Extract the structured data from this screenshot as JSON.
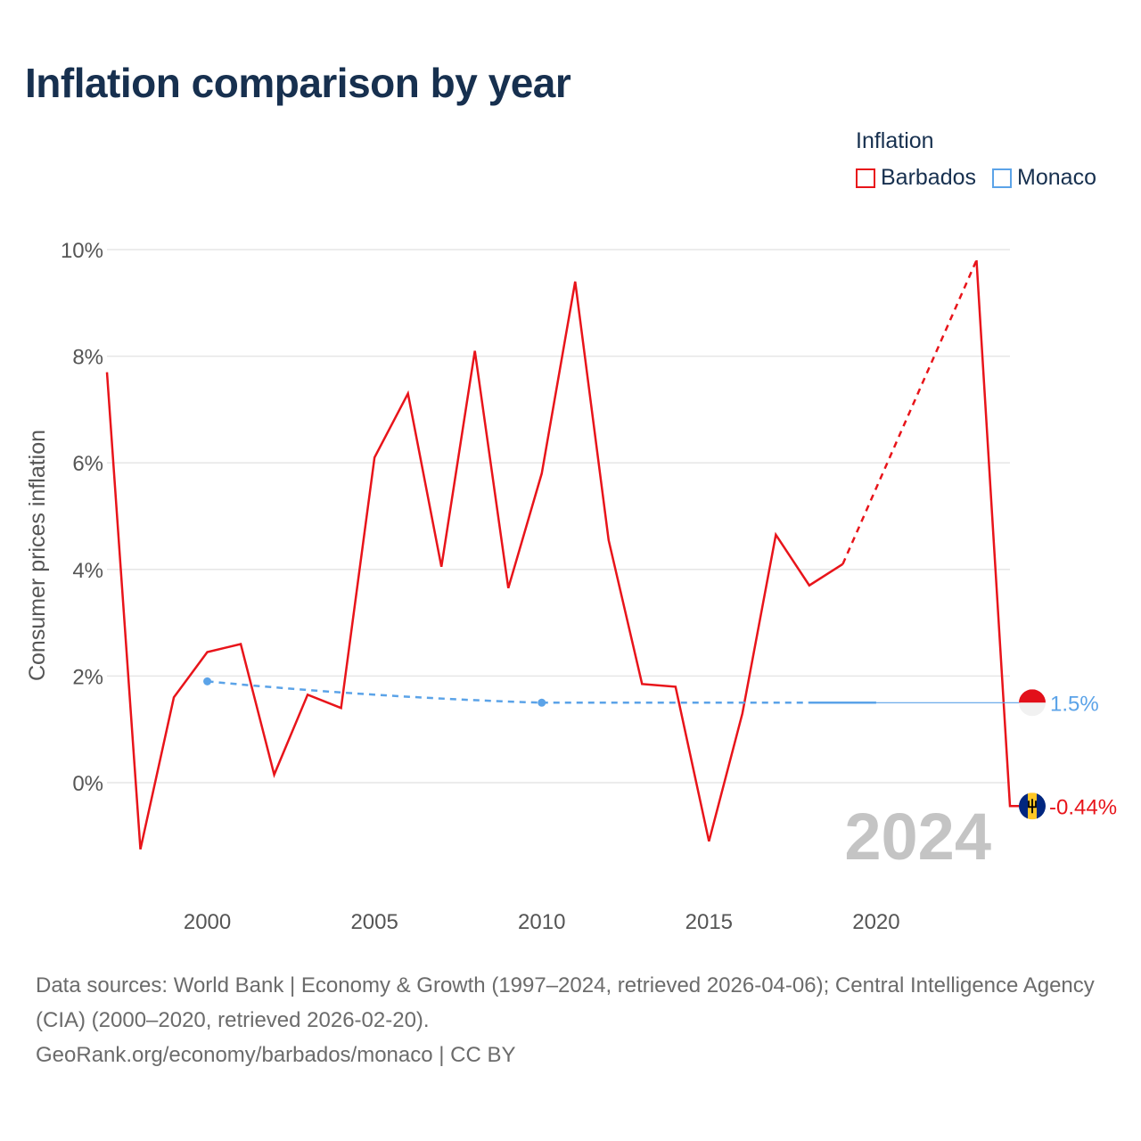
{
  "title": "Inflation comparison by year",
  "legend": {
    "title": "Inflation",
    "items": [
      {
        "label": "Barbados",
        "color": "#e8141a"
      },
      {
        "label": "Monaco",
        "color": "#5ba3e8"
      }
    ]
  },
  "chart_data": {
    "type": "line",
    "title": "Inflation comparison by year",
    "ylabel": "Consumer prices inflation",
    "xlabel": "",
    "xlim": [
      1997,
      2024
    ],
    "ylim": [
      -2,
      10
    ],
    "yticks": [
      0,
      2,
      4,
      6,
      8,
      10
    ],
    "ytick_labels": [
      "0%",
      "2%",
      "4%",
      "6%",
      "8%",
      "10%"
    ],
    "xticks": [
      2000,
      2005,
      2010,
      2015,
      2020
    ],
    "xtick_labels": [
      "2000",
      "2005",
      "2010",
      "2015",
      "2020"
    ],
    "year_watermark": "2024",
    "series": [
      {
        "name": "Barbados",
        "color": "#e8141a",
        "x": [
          1997,
          1998,
          1999,
          2000,
          2001,
          2002,
          2003,
          2004,
          2005,
          2006,
          2007,
          2008,
          2009,
          2010,
          2011,
          2012,
          2013,
          2014,
          2015,
          2016,
          2017,
          2018,
          2019,
          2023,
          2024
        ],
        "values": [
          7.7,
          -1.25,
          1.6,
          2.45,
          2.6,
          0.15,
          1.65,
          1.4,
          6.1,
          7.3,
          4.05,
          8.1,
          3.65,
          5.8,
          9.4,
          4.55,
          1.85,
          1.8,
          -1.1,
          1.3,
          4.65,
          3.7,
          4.1,
          9.8,
          -0.44
        ],
        "gap_after": 2019,
        "end_label": "-0.44%"
      },
      {
        "name": "Monaco",
        "color": "#5ba3e8",
        "x": [
          2000,
          2010,
          2020
        ],
        "values": [
          1.9,
          1.5,
          1.5
        ],
        "end_label": "1.5%"
      }
    ]
  },
  "footer": {
    "line1": "Data sources: World Bank | Economy & Growth (1997–2024, retrieved 2026-04-06); Central Intelligence Agency (CIA) (2000–2020, retrieved 2026-02-20).",
    "line2": "GeoRank.org/economy/barbados/monaco | CC BY"
  }
}
